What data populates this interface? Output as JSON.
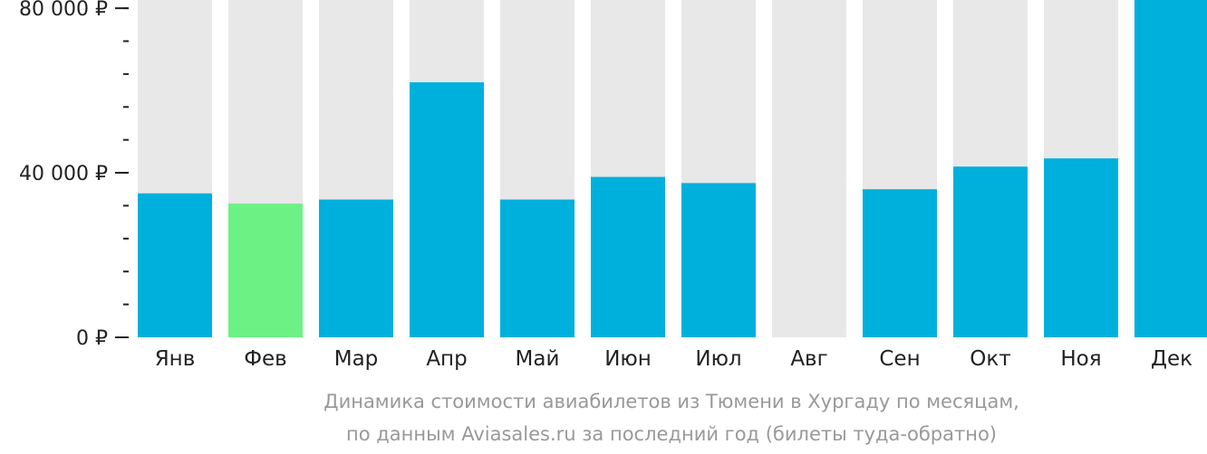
{
  "chart_data": {
    "type": "bar",
    "categories": [
      "Янв",
      "Фев",
      "Мар",
      "Апр",
      "Май",
      "Июн",
      "Июл",
      "Авг",
      "Сен",
      "Окт",
      "Ноя",
      "Дек"
    ],
    "values": [
      35000,
      32500,
      33500,
      62000,
      33500,
      39000,
      37500,
      null,
      36000,
      41500,
      43500,
      82000
    ],
    "ylim": [
      0,
      82000
    ],
    "yticks": [
      {
        "value": 0,
        "label": "0 ₽"
      },
      {
        "value": 40000,
        "label": "40 000 ₽"
      },
      {
        "value": 80000,
        "label": "80 000 ₽"
      }
    ],
    "minor_tick_step": 8000,
    "highlight_index": 1,
    "colors": {
      "bar": "#00b0dc",
      "highlight": "#6cf284",
      "background_column": "#e8e8e8",
      "axis": "#222222",
      "caption": "#999999"
    }
  },
  "caption": {
    "line1": "Динамика стоимости авиабилетов из Тюмени в Хургаду по месяцам,",
    "line2": "по данным Aviasales.ru за последний год (билеты туда-обратно)"
  }
}
